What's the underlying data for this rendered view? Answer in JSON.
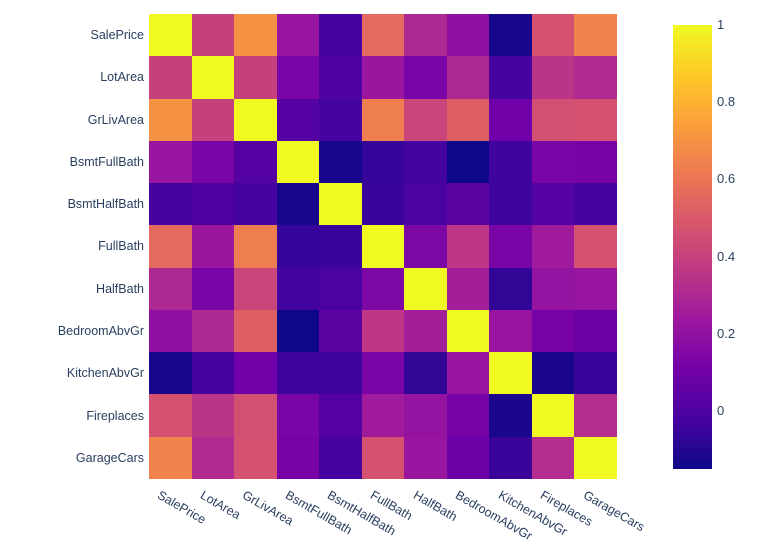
{
  "figure": {
    "background": "#ffffff",
    "tick_label_color": "#2a3f5f",
    "title": ""
  },
  "chart_data": {
    "type": "heatmap",
    "title": "",
    "xlabel": "",
    "ylabel": "",
    "x_categories": [
      "SalePrice",
      "LotArea",
      "GrLivArea",
      "BsmtFullBath",
      "BsmtHalfBath",
      "FullBath",
      "HalfBath",
      "BedroomAbvGr",
      "KitchenAbvGr",
      "Fireplaces",
      "GarageCars"
    ],
    "y_categories": [
      "SalePrice",
      "LotArea",
      "GrLivArea",
      "BsmtFullBath",
      "BsmtHalfBath",
      "FullBath",
      "HalfBath",
      "BedroomAbvGr",
      "KitchenAbvGr",
      "Fireplaces",
      "GarageCars"
    ],
    "y_order": "top-to-bottom",
    "matrix": [
      [
        1.0,
        0.4,
        0.7,
        0.22,
        -0.02,
        0.56,
        0.3,
        0.19,
        -0.13,
        0.47,
        0.65
      ],
      [
        0.4,
        1.0,
        0.4,
        0.13,
        0.0,
        0.23,
        0.13,
        0.3,
        -0.02,
        0.35,
        0.31
      ],
      [
        0.7,
        0.4,
        1.0,
        0.02,
        -0.02,
        0.63,
        0.42,
        0.52,
        0.1,
        0.46,
        0.47
      ],
      [
        0.22,
        0.13,
        0.02,
        1.0,
        -0.13,
        -0.06,
        -0.03,
        -0.15,
        -0.04,
        0.13,
        0.12
      ],
      [
        -0.02,
        0.0,
        -0.02,
        -0.13,
        1.0,
        -0.05,
        -0.01,
        0.04,
        -0.04,
        0.02,
        -0.02
      ],
      [
        0.56,
        0.23,
        0.63,
        -0.06,
        -0.05,
        1.0,
        0.14,
        0.36,
        0.13,
        0.25,
        0.47
      ],
      [
        0.3,
        0.13,
        0.42,
        -0.03,
        -0.01,
        0.14,
        1.0,
        0.26,
        -0.07,
        0.21,
        0.22
      ],
      [
        0.19,
        0.3,
        0.52,
        -0.15,
        0.04,
        0.36,
        0.26,
        1.0,
        0.22,
        0.12,
        0.09
      ],
      [
        -0.13,
        -0.02,
        0.1,
        -0.04,
        -0.04,
        0.13,
        -0.07,
        0.22,
        1.0,
        -0.12,
        -0.05
      ],
      [
        0.47,
        0.35,
        0.46,
        0.13,
        0.02,
        0.25,
        0.21,
        0.12,
        -0.12,
        1.0,
        0.32
      ],
      [
        0.65,
        0.31,
        0.47,
        0.12,
        -0.02,
        0.47,
        0.22,
        0.09,
        -0.05,
        0.32,
        1.0
      ]
    ],
    "zmin": -0.15,
    "zmax": 1,
    "colorscale_name": "plasma",
    "colorscale_stops": [
      {
        "t": 0.0,
        "color": "#0d0887"
      },
      {
        "t": 0.1111,
        "color": "#46039f"
      },
      {
        "t": 0.2222,
        "color": "#7201a8"
      },
      {
        "t": 0.3333,
        "color": "#9c179e"
      },
      {
        "t": 0.4444,
        "color": "#bd3786"
      },
      {
        "t": 0.5556,
        "color": "#d8576b"
      },
      {
        "t": 0.6667,
        "color": "#ed7953"
      },
      {
        "t": 0.7778,
        "color": "#fb9f3a"
      },
      {
        "t": 0.8889,
        "color": "#fdca26"
      },
      {
        "t": 1.0,
        "color": "#f0f921"
      }
    ],
    "colorbar": {
      "position": "right",
      "ticks": [
        {
          "label": "1",
          "value": 1.0
        },
        {
          "label": "0.8",
          "value": 0.8
        },
        {
          "label": "0.6",
          "value": 0.6
        },
        {
          "label": "0.4",
          "value": 0.4
        },
        {
          "label": "0.2",
          "value": 0.2
        },
        {
          "label": "0",
          "value": 0.0
        }
      ]
    },
    "x_tick_angle_deg": 30,
    "grid": false,
    "legend_position": "none"
  }
}
